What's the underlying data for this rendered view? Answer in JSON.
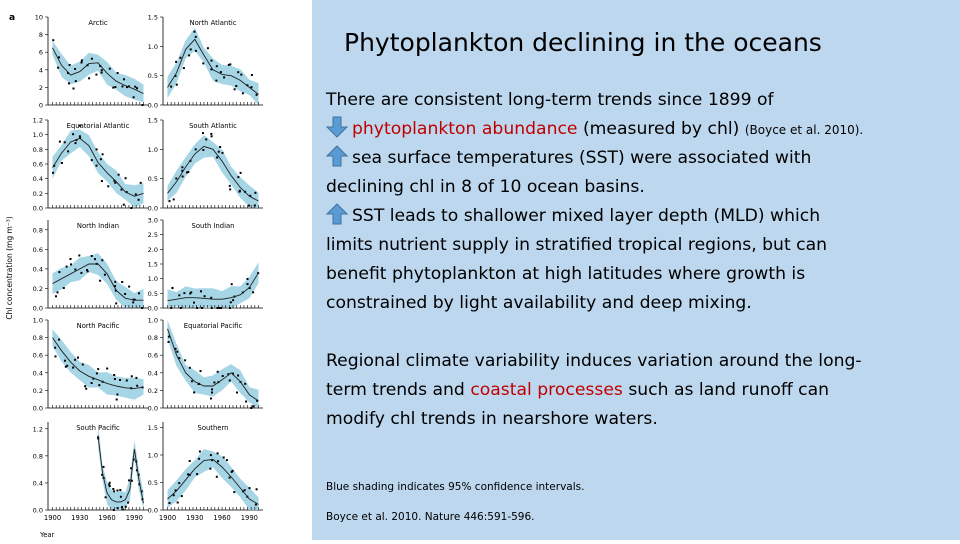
{
  "slide": {
    "title": "Phytoplankton declining in the oceans",
    "para1_line1": "There are consistent long-term trends since 1899 of",
    "bullet1_main": "phytoplankton abundance",
    "bullet1_rest": " (measured by chl) ",
    "bullet1_cite": "(Boyce et al. 2010).",
    "bullet2_line1": "sea surface temperatures (SST) were associated with",
    "bullet2_line2": "declining chl in 8 of 10 ocean basins.",
    "bullet3_line1": "SST leads to shallower mixed layer depth (MLD) which",
    "bullet3_line2": "limits nutrient supply in stratified tropical regions, but can",
    "bullet3_line3": "benefit phytoplankton at high latitudes where growth is",
    "bullet3_line4": "constrained by light availability and deep mixing.",
    "para2_line1": "Regional climate variability induces variation around the long-",
    "para2_line2_pre": "term trends and ",
    "para2_line2_red": "coastal processes",
    "para2_line2_post": " such as land runoff can",
    "para2_line3": "modify chl trends in nearshore waters.",
    "caption": "Blue shading indicates 95% confidence intervals.",
    "reference": "Boyce et al. 2010. Nature 446:591-596.",
    "colors": {
      "panel": "#bdd7ee",
      "accent_red": "#c00000",
      "arrow": "#5b9bd5",
      "ci_fill": "#a6d5e6"
    }
  },
  "figure": {
    "panel_letter": "a",
    "y_axis_label": "Chl concentration (mg m⁻³)",
    "x_axis_label": "Year",
    "x_ticks": [
      "1900",
      "1930",
      "1960",
      "1990"
    ],
    "chart_data": [
      {
        "name": "Arctic",
        "type": "line",
        "yticks": [
          "0",
          "2",
          "4",
          "6",
          "8",
          "10"
        ],
        "ylim": [
          0,
          10
        ],
        "x": [
          1900,
          1910,
          1920,
          1930,
          1940,
          1950,
          1960,
          1970,
          1980,
          1990,
          2000
        ],
        "y": [
          6.5,
          4.5,
          3.4,
          3.8,
          4.7,
          4.8,
          3.6,
          2.7,
          2.2,
          1.8,
          1.3
        ]
      },
      {
        "name": "North Atlantic",
        "type": "line",
        "yticks": [
          "0.0",
          "0.5",
          "1.0",
          "1.5"
        ],
        "ylim": [
          0,
          1.5
        ],
        "x": [
          1900,
          1910,
          1920,
          1930,
          1940,
          1950,
          1960,
          1970,
          1980,
          1990,
          2000
        ],
        "y": [
          0.3,
          0.55,
          0.95,
          1.12,
          0.85,
          0.6,
          0.52,
          0.5,
          0.42,
          0.3,
          0.18
        ]
      },
      {
        "name": "Equatorial Atlantic",
        "type": "line",
        "yticks": [
          "0.0",
          "0.2",
          "0.4",
          "0.6",
          "0.8",
          "1.0",
          "1.2"
        ],
        "ylim": [
          0,
          1.2
        ],
        "x": [
          1900,
          1910,
          1920,
          1930,
          1940,
          1950,
          1960,
          1970,
          1980,
          1990,
          2000
        ],
        "y": [
          0.55,
          0.75,
          0.9,
          0.95,
          0.85,
          0.62,
          0.48,
          0.36,
          0.22,
          0.16,
          0.2
        ]
      },
      {
        "name": "South Atlantic",
        "type": "line",
        "yticks": [
          "0.0",
          "0.5",
          "1.0",
          "1.5"
        ],
        "ylim": [
          0,
          1.5
        ],
        "x": [
          1900,
          1910,
          1920,
          1930,
          1940,
          1950,
          1960,
          1970,
          1980,
          1990,
          2000
        ],
        "y": [
          0.25,
          0.45,
          0.7,
          0.92,
          1.05,
          1.0,
          0.8,
          0.55,
          0.35,
          0.2,
          0.12
        ]
      },
      {
        "name": "North Indian",
        "type": "line",
        "yticks": [
          "0.0",
          "0.2",
          "0.4",
          "0.6",
          "0.8"
        ],
        "ylim": [
          0,
          0.9
        ],
        "x": [
          1900,
          1910,
          1920,
          1930,
          1940,
          1950,
          1960,
          1970,
          1980,
          1990,
          2000
        ],
        "y": [
          0.25,
          0.3,
          0.35,
          0.4,
          0.45,
          0.45,
          0.35,
          0.18,
          0.1,
          0.08,
          0.08
        ]
      },
      {
        "name": "South Indian",
        "type": "line",
        "yticks": [
          "0.0",
          "0.5",
          "1.0",
          "1.5",
          "2.0",
          "2.5",
          "3.0"
        ],
        "ylim": [
          0,
          3.0
        ],
        "x": [
          1900,
          1910,
          1920,
          1930,
          1940,
          1950,
          1960,
          1970,
          1980,
          1990,
          2000
        ],
        "y": [
          0.25,
          0.3,
          0.35,
          0.35,
          0.33,
          0.3,
          0.3,
          0.35,
          0.45,
          0.7,
          1.2
        ]
      },
      {
        "name": "North Pacific",
        "type": "line",
        "yticks": [
          "0.0",
          "0.2",
          "0.4",
          "0.6",
          "0.8",
          "1.0"
        ],
        "ylim": [
          0,
          1.0
        ],
        "x": [
          1900,
          1910,
          1920,
          1930,
          1940,
          1950,
          1960,
          1970,
          1980,
          1990,
          2000
        ],
        "y": [
          0.8,
          0.65,
          0.52,
          0.42,
          0.36,
          0.32,
          0.28,
          0.25,
          0.23,
          0.22,
          0.24
        ]
      },
      {
        "name": "Equatorial Pacific",
        "type": "line",
        "yticks": [
          "0.0",
          "0.2",
          "0.4",
          "0.6",
          "0.8",
          "1.0"
        ],
        "ylim": [
          0,
          1.0
        ],
        "x": [
          1900,
          1910,
          1920,
          1930,
          1940,
          1950,
          1960,
          1970,
          1980,
          1990,
          2000
        ],
        "y": [
          0.9,
          0.6,
          0.4,
          0.3,
          0.25,
          0.25,
          0.32,
          0.4,
          0.3,
          0.15,
          0.08
        ]
      },
      {
        "name": "South Pacific",
        "type": "line",
        "yticks": [
          "0.0",
          "0.4",
          "0.8",
          "1.2"
        ],
        "ylim": [
          0,
          1.3
        ],
        "x": [
          1950,
          1955,
          1960,
          1965,
          1970,
          1975,
          1980,
          1985,
          1990,
          1995,
          2000
        ],
        "y": [
          1.1,
          0.55,
          0.25,
          0.15,
          0.12,
          0.12,
          0.15,
          0.3,
          0.9,
          0.45,
          0.1
        ]
      },
      {
        "name": "Southern",
        "type": "line",
        "yticks": [
          "0.0",
          "0.5",
          "1.0",
          "1.5"
        ],
        "ylim": [
          0,
          1.6
        ],
        "x": [
          1900,
          1910,
          1920,
          1930,
          1940,
          1950,
          1960,
          1970,
          1980,
          1990,
          2000
        ],
        "y": [
          0.2,
          0.35,
          0.55,
          0.75,
          0.9,
          0.92,
          0.78,
          0.6,
          0.4,
          0.2,
          0.1
        ]
      }
    ]
  }
}
